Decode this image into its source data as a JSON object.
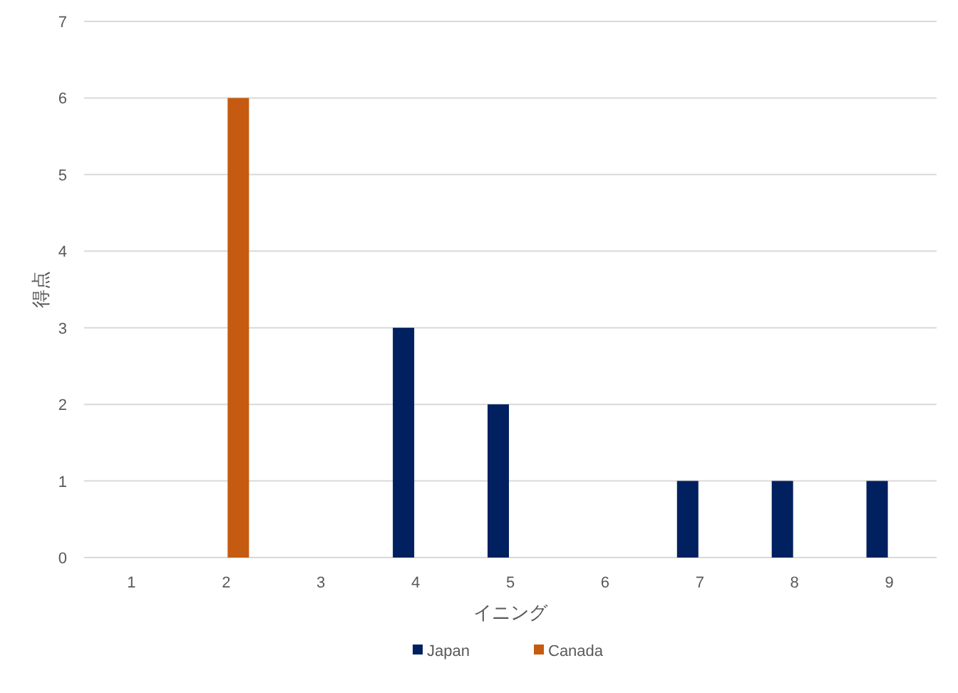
{
  "chart_data": {
    "type": "bar",
    "xlabel": "イニング",
    "ylabel": "得点",
    "categories": [
      "1",
      "2",
      "3",
      "4",
      "5",
      "6",
      "7",
      "8",
      "9"
    ],
    "series": [
      {
        "name": "Japan",
        "color": "#002060",
        "values": [
          0,
          0,
          0,
          3,
          2,
          0,
          1,
          1,
          1
        ]
      },
      {
        "name": "Canada",
        "color": "#c55a11",
        "values": [
          0,
          6,
          0,
          0,
          0,
          0,
          0,
          0,
          0
        ]
      }
    ],
    "ylim": [
      0,
      7
    ],
    "yticks": [
      0,
      1,
      2,
      3,
      4,
      5,
      6,
      7
    ],
    "grid": "y",
    "legend": "bottom"
  }
}
